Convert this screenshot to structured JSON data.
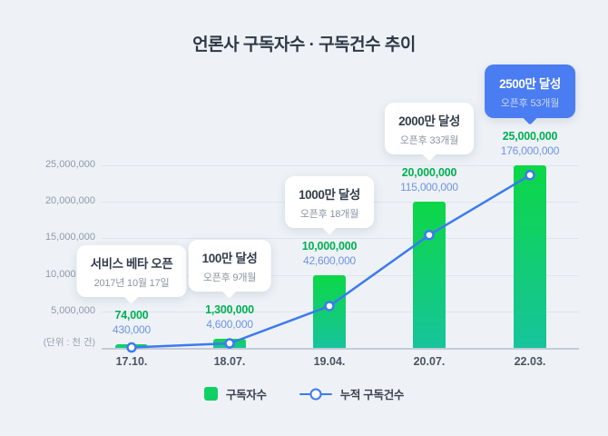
{
  "title": "언론사 구독자수 · 구독건수 추이",
  "unit_note": "(단위 : 천 건)",
  "legend": {
    "bar_label": "구독자수",
    "line_label": "누적 구독건수"
  },
  "colors": {
    "background": "#eef2f7",
    "bar_gradient_top": "#0cd747",
    "bar_gradient_bottom": "#17c49c",
    "legend_green": "#0fd062",
    "line_blue": "#3d7af0",
    "green_value_text": "#00b151",
    "blue_value_text": "#6f93e3",
    "callout_accent_blue": "#4a7cf2"
  },
  "chart_data": {
    "type": "bar",
    "categories": [
      "17.10.",
      "18.07.",
      "19.04.",
      "20.07.",
      "22.03."
    ],
    "series": [
      {
        "name": "구독자수",
        "type": "bar",
        "values": [
          74000,
          1300000,
          10000000,
          20000000,
          25000000
        ]
      },
      {
        "name": "누적 구독건수",
        "type": "line",
        "values": [
          430000,
          4600000,
          42600000,
          115000000,
          176000000
        ]
      }
    ],
    "bar_value_labels": [
      "74,000",
      "1,300,000",
      "10,000,000",
      "20,000,000",
      "25,000,000"
    ],
    "line_value_labels": [
      "430,000",
      "4,600,000",
      "42,600,000",
      "115,000,000",
      "176,000,000"
    ],
    "y_ticks": [
      "5,000,000",
      "10,000,000",
      "15,000,000",
      "20,000,000",
      "25,000,000"
    ],
    "ylim": [
      0,
      25000000
    ],
    "line_axis_max": 186000000,
    "grid": true,
    "legend_position": "bottom",
    "annotations": [
      {
        "title": "서비스 베타 오픈",
        "subtitle": "2017년 10월 17일",
        "style": "white"
      },
      {
        "title": "100만 달성",
        "subtitle": "오픈후 9개월",
        "style": "white"
      },
      {
        "title": "1000만 달성",
        "subtitle": "오픈후 18개월",
        "style": "white"
      },
      {
        "title": "2000만 달성",
        "subtitle": "오픈후 33개월",
        "style": "white"
      },
      {
        "title": "2500만 달성",
        "subtitle": "오픈후 53개월",
        "style": "blue"
      }
    ]
  }
}
